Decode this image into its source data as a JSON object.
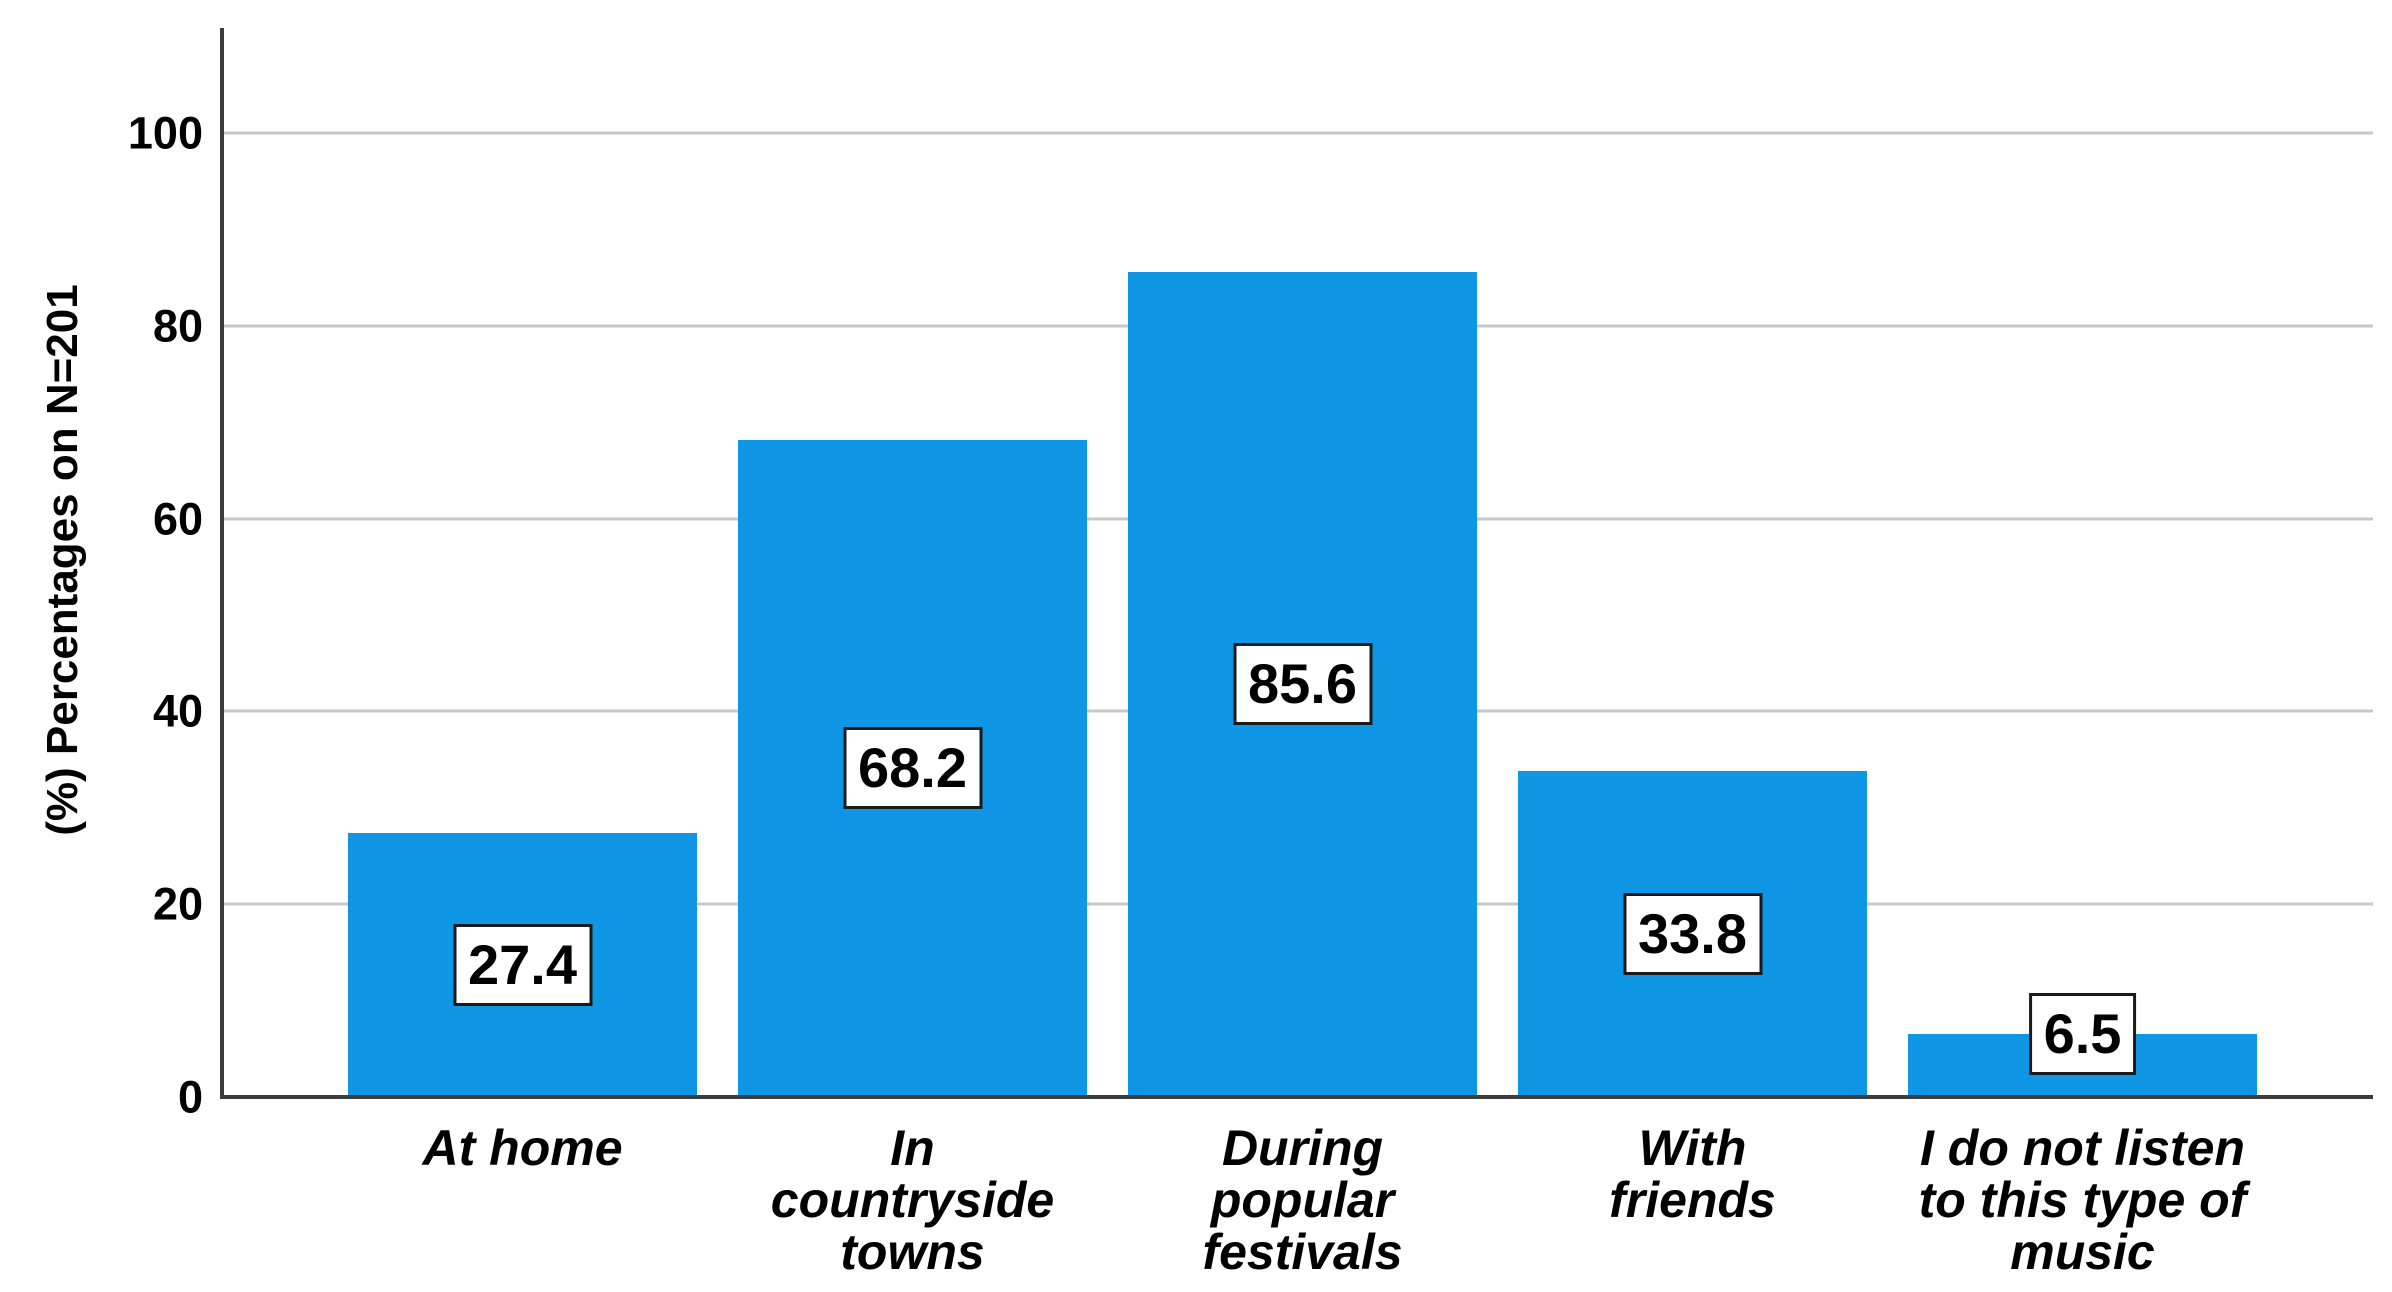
{
  "chart_data": {
    "type": "bar",
    "title": "",
    "xlabel": "",
    "ylabel": "(%) Percentages on N=201",
    "categories": [
      "At home",
      "In\ncountryside\ntowns",
      "During\npopular\nfestivals",
      "With\nfriends",
      "I do not listen\nto this type of\nmusic"
    ],
    "values": [
      27.4,
      68.2,
      85.6,
      33.8,
      6.5
    ],
    "value_labels": [
      "27.4",
      "68.2",
      "85.6",
      "33.8",
      "6.5"
    ],
    "y_ticks": [
      0,
      20,
      40,
      60,
      80,
      100
    ],
    "ylim": [
      0,
      111
    ],
    "grid": "horizontal",
    "legend": "none",
    "colors": {
      "bar_fill": "#0f96e4",
      "axis_line": "#3d3d3d",
      "gridline": "#c8c8c8",
      "label_box_bg": "#ffffff",
      "label_box_border": "#1a1a1a",
      "text": "#000000"
    }
  }
}
